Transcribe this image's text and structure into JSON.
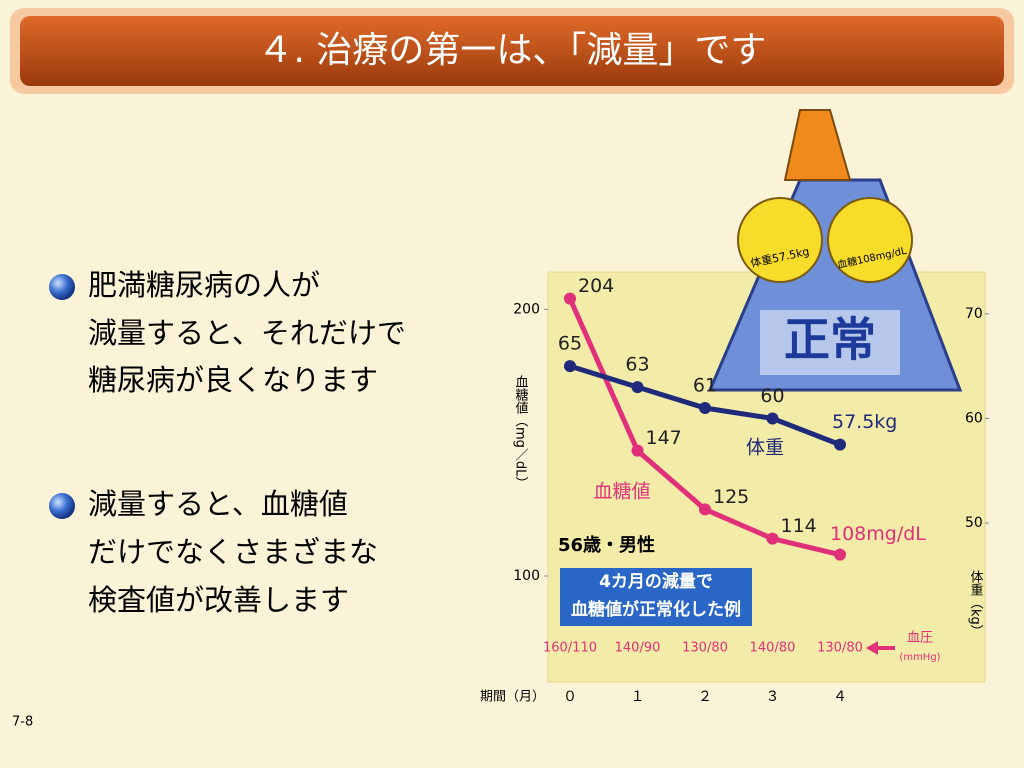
{
  "slide": {
    "title": "４. 治療の第一は、「減量」です",
    "bullets": [
      {
        "lines": [
          "肥満糖尿病の人が",
          "減量すると、それだけで",
          "糖尿病が良くなります"
        ]
      },
      {
        "lines": [
          "減量すると、血糖値",
          "だけでなくさまざまな",
          "検査値が改善します"
        ]
      }
    ],
    "page_number": "7-8"
  },
  "illustration": {
    "labels": [
      "体重57.5kg",
      "血糖108mg/dL",
      "正常"
    ]
  },
  "chart_data": {
    "type": "line",
    "x_label": "期間（月）",
    "categories": [
      "０",
      "１",
      "２",
      "３",
      "４"
    ],
    "y_label": "血糖値（mg／dL）",
    "y2_label": "体重（kg）",
    "ylim": [
      61,
      214
    ],
    "yticks": [
      100,
      200
    ],
    "y2lim": [
      35,
      74
    ],
    "y2ticks": [
      50,
      60,
      70
    ],
    "series": [
      {
        "name": "血糖値",
        "color": "#e0307a",
        "values": [
          204,
          147,
          125,
          114,
          108
        ],
        "value_labels": [
          "204",
          "147",
          "125",
          "114",
          "108mg/dL"
        ]
      },
      {
        "name": "体重",
        "color": "#1f2a7a",
        "axis": "y2",
        "values": [
          65,
          63,
          61,
          60,
          57.5
        ],
        "value_labels": [
          "65",
          "63",
          "61",
          "60",
          "57.5kg"
        ]
      }
    ],
    "annotations": [
      "56歳・男性",
      "4カ月の減量で",
      "血糖値が正常化した例"
    ],
    "blood_pressure": {
      "label": "血圧",
      "unit": "(mmHg)",
      "values": [
        "160/110",
        "140/90",
        "130/80",
        "140/80",
        "130/80"
      ]
    }
  }
}
